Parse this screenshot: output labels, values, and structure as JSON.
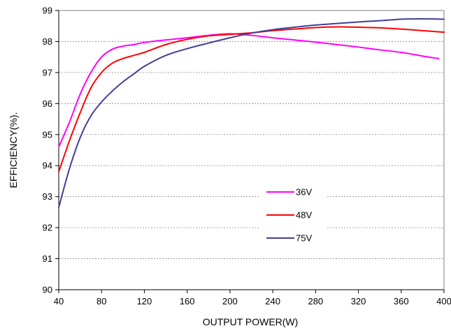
{
  "chart_data": {
    "type": "line",
    "title": "",
    "xlabel": "OUTPUT POWER(W)",
    "ylabel": "EFFICIENCY(%).",
    "xlim": [
      40,
      400
    ],
    "ylim": [
      90,
      99
    ],
    "xticks": [
      40,
      80,
      120,
      160,
      200,
      240,
      280,
      320,
      360,
      400
    ],
    "yticks": [
      90,
      91,
      92,
      93,
      94,
      95,
      96,
      97,
      98,
      99
    ],
    "grid": "horizontal dashed",
    "legend_position": "center-right",
    "series": [
      {
        "name": "36V",
        "color": "#ff00ff",
        "x": [
          40,
          50,
          60,
          70,
          80,
          90,
          100,
          110,
          120,
          140,
          160,
          180,
          200,
          220,
          240,
          260,
          280,
          300,
          320,
          340,
          360,
          380,
          395
        ],
        "y": [
          94.6,
          95.4,
          96.3,
          97.0,
          97.5,
          97.75,
          97.85,
          97.9,
          97.97,
          98.05,
          98.12,
          98.2,
          98.25,
          98.2,
          98.12,
          98.05,
          97.98,
          97.9,
          97.82,
          97.73,
          97.65,
          97.53,
          97.45
        ]
      },
      {
        "name": "48V",
        "color": "#ff0000",
        "x": [
          40,
          50,
          60,
          70,
          80,
          90,
          100,
          110,
          120,
          140,
          160,
          180,
          200,
          220,
          240,
          260,
          280,
          300,
          320,
          340,
          360,
          380,
          400
        ],
        "y": [
          93.8,
          94.8,
          95.7,
          96.5,
          97.0,
          97.3,
          97.45,
          97.55,
          97.65,
          97.9,
          98.07,
          98.18,
          98.23,
          98.28,
          98.35,
          98.4,
          98.45,
          98.47,
          98.46,
          98.44,
          98.4,
          98.35,
          98.3
        ]
      },
      {
        "name": "75V",
        "color": "#3f3f9a",
        "x": [
          40,
          50,
          60,
          70,
          80,
          90,
          100,
          110,
          120,
          140,
          160,
          180,
          200,
          220,
          240,
          260,
          280,
          300,
          320,
          340,
          360,
          380,
          400
        ],
        "y": [
          92.65,
          93.9,
          94.9,
          95.6,
          96.05,
          96.4,
          96.7,
          96.95,
          97.2,
          97.55,
          97.77,
          97.95,
          98.12,
          98.27,
          98.38,
          98.46,
          98.53,
          98.58,
          98.63,
          98.67,
          98.72,
          98.73,
          98.72
        ]
      }
    ]
  }
}
